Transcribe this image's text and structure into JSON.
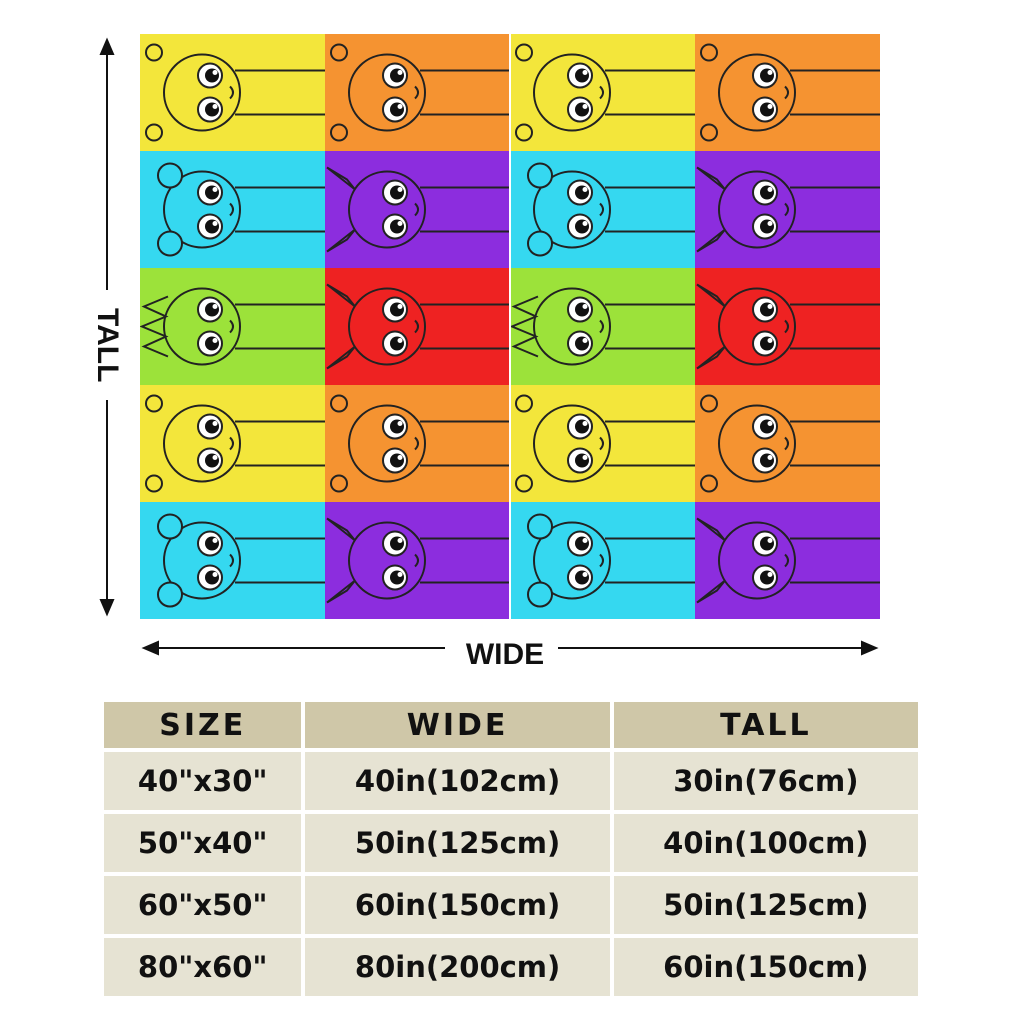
{
  "labels": {
    "tall": "TALL",
    "wide": "WIDE"
  },
  "blanket": {
    "colors": {
      "yellow": "#f3e63b",
      "orange": "#f59331",
      "cyan": "#35d8f0",
      "purple": "#8c2dde",
      "green": "#9ce23a",
      "red": "#ee2222"
    },
    "rows": [
      [
        "yellow-character",
        "orange-character"
      ],
      [
        "cyan-character",
        "purple-character"
      ],
      [
        "green-character",
        "red-character"
      ],
      [
        "yellow-character",
        "orange-character"
      ],
      [
        "cyan-character",
        "purple-character"
      ]
    ]
  },
  "size_table": {
    "headers": [
      "SIZE",
      "WIDE",
      "TALL"
    ],
    "rows": [
      [
        "40\"x30\"",
        "40in(102cm)",
        "30in(76cm)"
      ],
      [
        "50\"x40\"",
        "50in(125cm)",
        "40in(100cm)"
      ],
      [
        "60\"x50\"",
        "60in(150cm)",
        "50in(125cm)"
      ],
      [
        "80\"x60\"",
        "80in(200cm)",
        "60in(150cm)"
      ]
    ]
  }
}
